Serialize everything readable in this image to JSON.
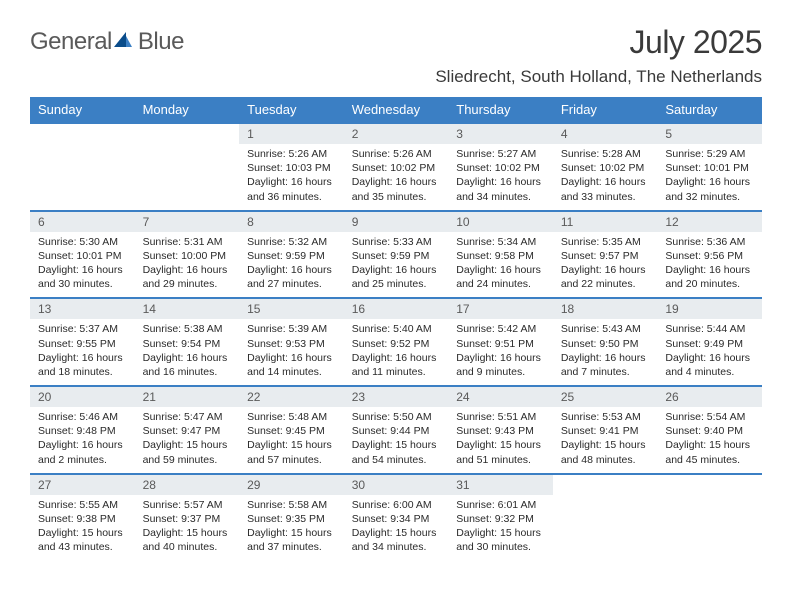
{
  "logo": {
    "text1": "General",
    "text2": "Blue"
  },
  "title": "July 2025",
  "location": "Sliedrecht, South Holland, The Netherlands",
  "colors": {
    "header_bg": "#3b7fc4",
    "header_text": "#ffffff",
    "daynum_bg": "#e8ecef",
    "daynum_text": "#5a5a5a",
    "body_text": "#2a2a2a",
    "page_bg": "#ffffff",
    "logo_gray": "#5a5a5a",
    "logo_blue": "#3b7fc4"
  },
  "typography": {
    "title_fontsize": 32,
    "location_fontsize": 17,
    "weekday_fontsize": 13,
    "daynum_fontsize": 12,
    "body_fontsize": 10.5,
    "font_family": "Arial"
  },
  "layout": {
    "columns": 7,
    "rows": 5,
    "first_day_column_index": 2
  },
  "weekdays": [
    "Sunday",
    "Monday",
    "Tuesday",
    "Wednesday",
    "Thursday",
    "Friday",
    "Saturday"
  ],
  "days": [
    {
      "n": "1",
      "sunrise": "5:26 AM",
      "sunset": "10:03 PM",
      "daylight": "16 hours and 36 minutes."
    },
    {
      "n": "2",
      "sunrise": "5:26 AM",
      "sunset": "10:02 PM",
      "daylight": "16 hours and 35 minutes."
    },
    {
      "n": "3",
      "sunrise": "5:27 AM",
      "sunset": "10:02 PM",
      "daylight": "16 hours and 34 minutes."
    },
    {
      "n": "4",
      "sunrise": "5:28 AM",
      "sunset": "10:02 PM",
      "daylight": "16 hours and 33 minutes."
    },
    {
      "n": "5",
      "sunrise": "5:29 AM",
      "sunset": "10:01 PM",
      "daylight": "16 hours and 32 minutes."
    },
    {
      "n": "6",
      "sunrise": "5:30 AM",
      "sunset": "10:01 PM",
      "daylight": "16 hours and 30 minutes."
    },
    {
      "n": "7",
      "sunrise": "5:31 AM",
      "sunset": "10:00 PM",
      "daylight": "16 hours and 29 minutes."
    },
    {
      "n": "8",
      "sunrise": "5:32 AM",
      "sunset": "9:59 PM",
      "daylight": "16 hours and 27 minutes."
    },
    {
      "n": "9",
      "sunrise": "5:33 AM",
      "sunset": "9:59 PM",
      "daylight": "16 hours and 25 minutes."
    },
    {
      "n": "10",
      "sunrise": "5:34 AM",
      "sunset": "9:58 PM",
      "daylight": "16 hours and 24 minutes."
    },
    {
      "n": "11",
      "sunrise": "5:35 AM",
      "sunset": "9:57 PM",
      "daylight": "16 hours and 22 minutes."
    },
    {
      "n": "12",
      "sunrise": "5:36 AM",
      "sunset": "9:56 PM",
      "daylight": "16 hours and 20 minutes."
    },
    {
      "n": "13",
      "sunrise": "5:37 AM",
      "sunset": "9:55 PM",
      "daylight": "16 hours and 18 minutes."
    },
    {
      "n": "14",
      "sunrise": "5:38 AM",
      "sunset": "9:54 PM",
      "daylight": "16 hours and 16 minutes."
    },
    {
      "n": "15",
      "sunrise": "5:39 AM",
      "sunset": "9:53 PM",
      "daylight": "16 hours and 14 minutes."
    },
    {
      "n": "16",
      "sunrise": "5:40 AM",
      "sunset": "9:52 PM",
      "daylight": "16 hours and 11 minutes."
    },
    {
      "n": "17",
      "sunrise": "5:42 AM",
      "sunset": "9:51 PM",
      "daylight": "16 hours and 9 minutes."
    },
    {
      "n": "18",
      "sunrise": "5:43 AM",
      "sunset": "9:50 PM",
      "daylight": "16 hours and 7 minutes."
    },
    {
      "n": "19",
      "sunrise": "5:44 AM",
      "sunset": "9:49 PM",
      "daylight": "16 hours and 4 minutes."
    },
    {
      "n": "20",
      "sunrise": "5:46 AM",
      "sunset": "9:48 PM",
      "daylight": "16 hours and 2 minutes."
    },
    {
      "n": "21",
      "sunrise": "5:47 AM",
      "sunset": "9:47 PM",
      "daylight": "15 hours and 59 minutes."
    },
    {
      "n": "22",
      "sunrise": "5:48 AM",
      "sunset": "9:45 PM",
      "daylight": "15 hours and 57 minutes."
    },
    {
      "n": "23",
      "sunrise": "5:50 AM",
      "sunset": "9:44 PM",
      "daylight": "15 hours and 54 minutes."
    },
    {
      "n": "24",
      "sunrise": "5:51 AM",
      "sunset": "9:43 PM",
      "daylight": "15 hours and 51 minutes."
    },
    {
      "n": "25",
      "sunrise": "5:53 AM",
      "sunset": "9:41 PM",
      "daylight": "15 hours and 48 minutes."
    },
    {
      "n": "26",
      "sunrise": "5:54 AM",
      "sunset": "9:40 PM",
      "daylight": "15 hours and 45 minutes."
    },
    {
      "n": "27",
      "sunrise": "5:55 AM",
      "sunset": "9:38 PM",
      "daylight": "15 hours and 43 minutes."
    },
    {
      "n": "28",
      "sunrise": "5:57 AM",
      "sunset": "9:37 PM",
      "daylight": "15 hours and 40 minutes."
    },
    {
      "n": "29",
      "sunrise": "5:58 AM",
      "sunset": "9:35 PM",
      "daylight": "15 hours and 37 minutes."
    },
    {
      "n": "30",
      "sunrise": "6:00 AM",
      "sunset": "9:34 PM",
      "daylight": "15 hours and 34 minutes."
    },
    {
      "n": "31",
      "sunrise": "6:01 AM",
      "sunset": "9:32 PM",
      "daylight": "15 hours and 30 minutes."
    }
  ],
  "labels": {
    "sunrise": "Sunrise:",
    "sunset": "Sunset:",
    "daylight": "Daylight:"
  }
}
